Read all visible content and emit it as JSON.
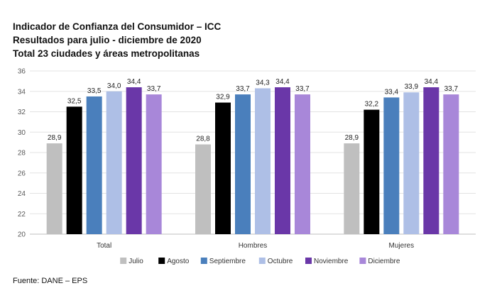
{
  "chart_data": {
    "type": "bar",
    "title": "Indicador de Confianza del Consumidor – ICC",
    "subtitle": "Resultados para julio - diciembre de 2020",
    "subtitle2": "Total 23 ciudades y áreas metropolitanas",
    "categories": [
      "Total",
      "Hombres",
      "Mujeres"
    ],
    "series": [
      {
        "name": "Julio",
        "color": "#bfbfbf",
        "values": [
          28.9,
          28.8,
          28.9
        ],
        "labels": [
          "28,9",
          "28,8",
          "28,9"
        ]
      },
      {
        "name": "Agosto",
        "color": "#000000",
        "values": [
          32.5,
          32.9,
          32.2
        ],
        "labels": [
          "32,5",
          "32,9",
          "32,2"
        ]
      },
      {
        "name": "Septiembre",
        "color": "#4a7fbc",
        "values": [
          33.5,
          33.7,
          33.4
        ],
        "labels": [
          "33,5",
          "33,7",
          "33,4"
        ]
      },
      {
        "name": "Octubre",
        "color": "#aebfe6",
        "values": [
          34.0,
          34.3,
          33.9
        ],
        "labels": [
          "34,0",
          "34,3",
          "33,9"
        ]
      },
      {
        "name": "Noviembre",
        "color": "#6a37a8",
        "values": [
          34.4,
          34.4,
          34.4
        ],
        "labels": [
          "34,4",
          "34,4",
          "34,4"
        ]
      },
      {
        "name": "Diciembre",
        "color": "#a887d9",
        "values": [
          33.7,
          33.7,
          33.7
        ],
        "labels": [
          "33,7",
          "33,7",
          "33,7"
        ]
      }
    ],
    "ylim": [
      20,
      36
    ],
    "yticks": [
      20,
      22,
      24,
      26,
      28,
      30,
      32,
      34,
      36
    ],
    "grid": true,
    "legend_position": "bottom"
  },
  "source": "Fuente: DANE – EPS"
}
